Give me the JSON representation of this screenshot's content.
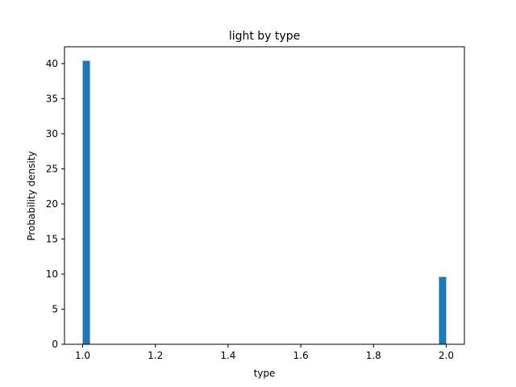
{
  "chart_data": {
    "type": "bar",
    "title": "light by type",
    "xlabel": "type",
    "ylabel": "Probability density",
    "xlim": [
      0.95,
      2.05
    ],
    "ylim": [
      0,
      42.4
    ],
    "xticks": [
      1.0,
      1.2,
      1.4,
      1.6,
      1.8,
      2.0
    ],
    "xtick_labels": [
      "1.0",
      "1.2",
      "1.4",
      "1.6",
      "1.8",
      "2.0"
    ],
    "yticks": [
      0,
      5,
      10,
      15,
      20,
      25,
      30,
      35,
      40
    ],
    "ytick_labels": [
      "0",
      "5",
      "10",
      "15",
      "20",
      "25",
      "30",
      "35",
      "40"
    ],
    "grid": false,
    "bar_color": "#1f77b4",
    "bins": [
      {
        "x0": 1.0,
        "x1": 1.02,
        "value": 40.4
      },
      {
        "x0": 1.98,
        "x1": 2.0,
        "value": 9.6
      }
    ]
  }
}
